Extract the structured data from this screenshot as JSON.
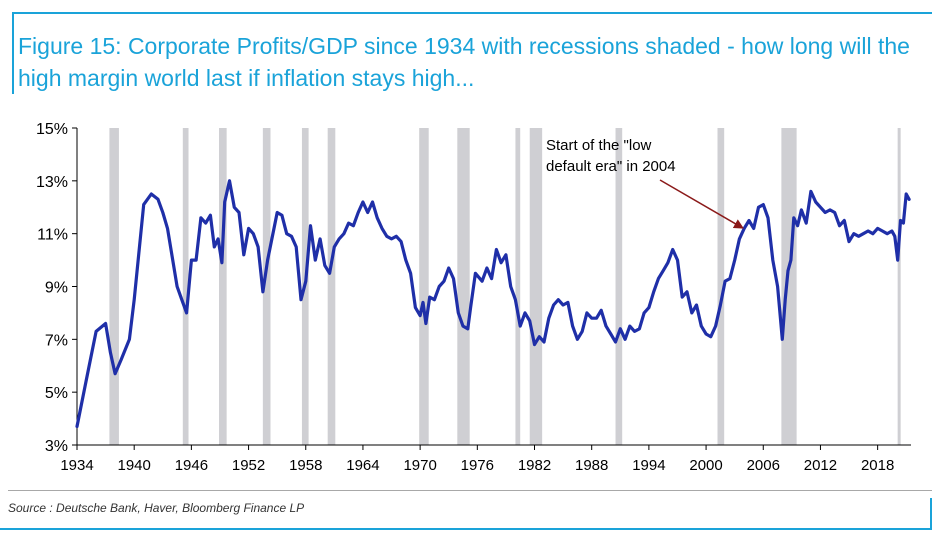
{
  "title": "Figure 15: Corporate Profits/GDP since 1934 with recessions shaded - how long will the high margin world last if inflation stays high...",
  "source": "Source : Deutsche Bank, Haver, Bloomberg Finance LP",
  "colors": {
    "accent": "#1aa3d9",
    "line": "#1f2fa8",
    "recession": "#cfcfd3",
    "arrow": "#8b1a1a",
    "text": "#000000"
  },
  "chart_data": {
    "type": "line",
    "title": "Corporate Profits/GDP since 1934 with recessions shaded",
    "xlabel": "",
    "ylabel": "",
    "xlim": [
      1934,
      2021.5
    ],
    "ylim": [
      3,
      15
    ],
    "x_ticks": [
      1934,
      1940,
      1946,
      1952,
      1958,
      1964,
      1970,
      1976,
      1982,
      1988,
      1994,
      2000,
      2006,
      2012,
      2018
    ],
    "y_ticks": [
      3,
      5,
      7,
      9,
      11,
      13,
      15
    ],
    "y_tick_labels": [
      "3%",
      "5%",
      "7%",
      "9%",
      "11%",
      "13%",
      "15%"
    ],
    "recessions": [
      [
        1937.4,
        1938.4
      ],
      [
        1945.1,
        1945.7
      ],
      [
        1948.9,
        1949.7
      ],
      [
        1953.5,
        1954.3
      ],
      [
        1957.6,
        1958.3
      ],
      [
        1960.3,
        1961.1
      ],
      [
        1969.9,
        1970.9
      ],
      [
        1973.9,
        1975.2
      ],
      [
        1980.0,
        1980.5
      ],
      [
        1981.5,
        1982.8
      ],
      [
        1990.5,
        1991.2
      ],
      [
        2001.2,
        2001.9
      ],
      [
        2007.9,
        2009.5
      ],
      [
        2020.1,
        2020.4
      ]
    ],
    "series": [
      {
        "name": "Corporate Profits/GDP (%)",
        "x": [
          1934,
          1935,
          1936,
          1937,
          1937.5,
          1938,
          1938.6,
          1939.5,
          1940,
          1941,
          1941.8,
          1942.5,
          1943,
          1943.5,
          1944.5,
          1945,
          1945.5,
          1946,
          1946.5,
          1947,
          1947.5,
          1948,
          1948.4,
          1948.8,
          1949.2,
          1949.5,
          1950,
          1950.5,
          1951,
          1951.5,
          1952,
          1952.5,
          1953,
          1953.5,
          1954,
          1955,
          1955.5,
          1956,
          1956.5,
          1957,
          1957.5,
          1958,
          1958.5,
          1959,
          1959.5,
          1960,
          1960.5,
          1961,
          1961.5,
          1962,
          1962.5,
          1963,
          1963.5,
          1964,
          1964.5,
          1965,
          1965.5,
          1966,
          1966.5,
          1967,
          1967.5,
          1968,
          1968.5,
          1969,
          1969.5,
          1970,
          1970.3,
          1970.6,
          1971,
          1971.5,
          1972,
          1972.5,
          1973,
          1973.5,
          1974,
          1974.5,
          1975,
          1975.3,
          1975.8,
          1976.5,
          1977,
          1977.5,
          1978,
          1978.5,
          1979,
          1979.5,
          1980,
          1980.5,
          1981,
          1981.5,
          1982,
          1982.5,
          1983,
          1983.5,
          1984,
          1984.5,
          1985,
          1985.5,
          1986,
          1986.5,
          1987,
          1987.5,
          1988,
          1988.5,
          1989,
          1989.5,
          1990,
          1990.5,
          1991,
          1991.5,
          1992,
          1992.5,
          1993,
          1993.5,
          1994,
          1994.5,
          1995,
          1995.5,
          1996,
          1996.5,
          1997,
          1997.5,
          1998,
          1998.5,
          1999,
          1999.5,
          2000,
          2000.5,
          2001,
          2001.5,
          2002,
          2002.5,
          2003,
          2003.5,
          2004,
          2004.5,
          2005,
          2005.5,
          2006,
          2006.5,
          2007,
          2007.5,
          2008,
          2008.3,
          2008.6,
          2008.9,
          2009.2,
          2009.6,
          2010,
          2010.5,
          2011,
          2011.5,
          2012,
          2012.5,
          2013,
          2013.5,
          2014,
          2014.5,
          2015,
          2015.5,
          2016,
          2016.5,
          2017,
          2017.5,
          2018,
          2018.5,
          2019,
          2019.5,
          2019.8,
          2020.1,
          2020.4,
          2020.7,
          2021,
          2021.3
        ],
        "values": [
          3.7,
          5.5,
          7.3,
          7.6,
          6.5,
          5.7,
          6.2,
          7.0,
          8.5,
          12.1,
          12.5,
          12.3,
          11.8,
          11.2,
          9.0,
          8.5,
          8.0,
          10.0,
          10.0,
          11.6,
          11.4,
          11.7,
          10.5,
          10.8,
          9.9,
          12.2,
          13.0,
          12.0,
          11.8,
          10.2,
          11.2,
          11.0,
          10.5,
          8.8,
          10.0,
          11.8,
          11.7,
          11.0,
          10.9,
          10.5,
          8.5,
          9.2,
          11.3,
          10.0,
          10.8,
          9.8,
          9.5,
          10.5,
          10.8,
          11.0,
          11.4,
          11.3,
          11.8,
          12.2,
          11.8,
          12.2,
          11.6,
          11.2,
          10.9,
          10.8,
          10.9,
          10.7,
          10.0,
          9.5,
          8.2,
          7.9,
          8.4,
          7.6,
          8.6,
          8.5,
          9.0,
          9.2,
          9.7,
          9.3,
          8.0,
          7.5,
          7.4,
          8.2,
          9.5,
          9.2,
          9.7,
          9.3,
          10.4,
          9.9,
          10.2,
          9.0,
          8.5,
          7.5,
          8.0,
          7.7,
          6.8,
          7.1,
          6.9,
          7.8,
          8.3,
          8.5,
          8.3,
          8.4,
          7.5,
          7.0,
          7.3,
          8.0,
          7.8,
          7.8,
          8.1,
          7.5,
          7.2,
          6.9,
          7.4,
          7.0,
          7.5,
          7.3,
          7.4,
          8.0,
          8.2,
          8.8,
          9.3,
          9.6,
          9.9,
          10.4,
          10.0,
          8.6,
          8.8,
          8.0,
          8.3,
          7.5,
          7.2,
          7.1,
          7.5,
          8.3,
          9.2,
          9.3,
          10.0,
          10.8,
          11.2,
          11.5,
          11.2,
          12.0,
          12.1,
          11.6,
          10.0,
          9.0,
          7.0,
          8.5,
          9.6,
          10.0,
          11.6,
          11.3,
          11.9,
          11.4,
          12.6,
          12.2,
          12.0,
          11.8,
          11.9,
          11.8,
          11.3,
          11.5,
          10.7,
          11.0,
          10.9,
          11.0,
          11.1,
          11.0,
          11.2,
          11.1,
          11.0,
          11.1,
          10.9,
          10.0,
          11.5,
          11.4,
          12.5,
          12.3
        ]
      }
    ],
    "annotation": {
      "text_line1": "Start of the  \"low",
      "text_line2": "default era\" in 2004",
      "points_to_x": 2004,
      "points_to_y": 11.0
    }
  }
}
